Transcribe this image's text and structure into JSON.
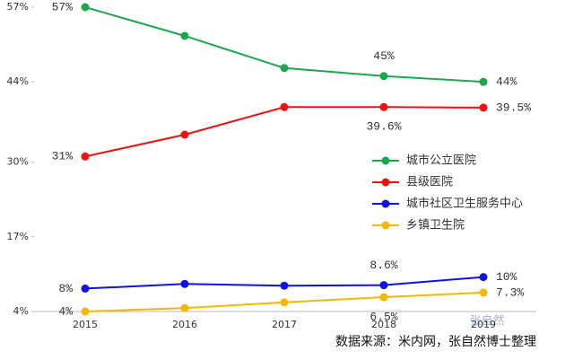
{
  "chart_data": {
    "type": "line",
    "categories": [
      "2015",
      "2016",
      "2017",
      "2018",
      "2019"
    ],
    "series": [
      {
        "name": "城市公立医院",
        "color": "#1aa84e",
        "values": [
          57,
          52,
          46.4,
          45,
          44
        ],
        "value_labels": [
          "57%",
          null,
          null,
          "45%",
          "44%"
        ]
      },
      {
        "name": "县级医院",
        "color": "#f01010",
        "values": [
          31,
          34.8,
          39.6,
          39.6,
          39.5
        ],
        "value_labels": [
          "31%",
          null,
          null,
          "39.6%",
          "39.5%"
        ]
      },
      {
        "name": "城市社区卫生服务中心",
        "color": "#1010e8",
        "values": [
          8,
          8.8,
          8.5,
          8.6,
          10
        ],
        "value_labels": [
          "8%",
          null,
          null,
          "8.6%",
          "10%"
        ]
      },
      {
        "name": "乡镇卫生院",
        "color": "#f5b800",
        "values": [
          4,
          4.6,
          5.6,
          6.5,
          7.3
        ],
        "value_labels": [
          "4%",
          null,
          null,
          "6.5%",
          "7.3%"
        ]
      }
    ],
    "ylim": [
      4,
      57
    ],
    "yticks": [
      {
        "value": 4,
        "label": "4%"
      },
      {
        "value": 17,
        "label": "17%"
      },
      {
        "value": 30,
        "label": "30%"
      },
      {
        "value": 44,
        "label": "44%"
      },
      {
        "value": 57,
        "label": "57%"
      }
    ],
    "legend": "right",
    "source": "数据来源：米内网，张自然博士整理",
    "watermark": "张自然"
  }
}
